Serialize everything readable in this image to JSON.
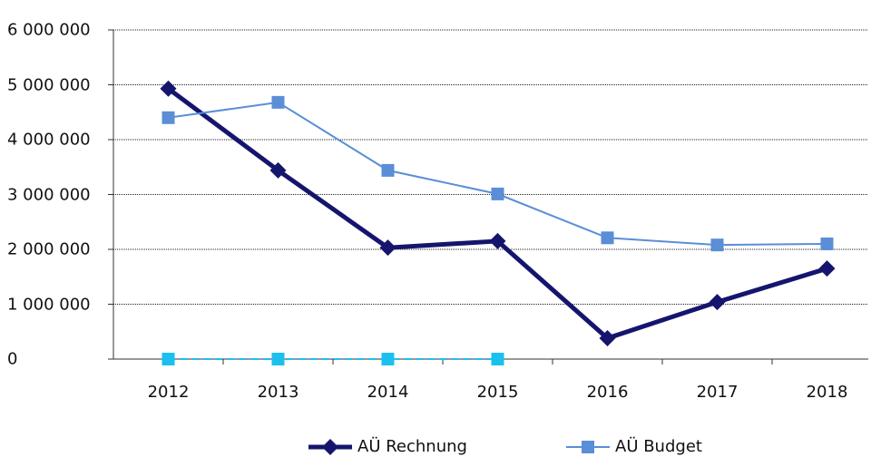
{
  "chart_data": {
    "type": "line",
    "categories": [
      "2012",
      "2013",
      "2014",
      "2015",
      "2016",
      "2017",
      "2018"
    ],
    "series": [
      {
        "name": "AÜ Rechnung",
        "color": "#15156e",
        "marker": "diamond",
        "values": [
          4930000,
          3440000,
          2030000,
          2150000,
          380000,
          1040000,
          1650000
        ]
      },
      {
        "name": "AÜ Budget",
        "color": "#5a8ed6",
        "marker": "square",
        "values": [
          4400000,
          4680000,
          3440000,
          3010000,
          2210000,
          2080000,
          2100000
        ]
      },
      {
        "color": "#1cc0ee",
        "marker": "square",
        "dashed": true,
        "values": [
          0,
          0,
          0,
          0,
          null,
          null,
          null
        ]
      }
    ],
    "ylim": [
      0,
      6000000
    ],
    "yticks": [
      0,
      {
        "value": 1000000,
        "label": "1 000 000"
      },
      {
        "value": 2000000,
        "label": "2 000 000"
      },
      {
        "value": 3000000,
        "label": "3 000 000"
      },
      {
        "value": 4000000,
        "label": "4 000 000"
      },
      {
        "value": 5000000,
        "label": "5 000 000"
      },
      {
        "value": 6000000,
        "label": "6 000 000"
      }
    ],
    "grid": true,
    "legend": "bottom"
  }
}
